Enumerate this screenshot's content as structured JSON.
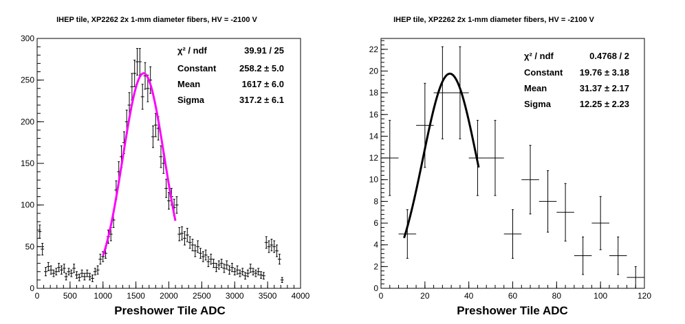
{
  "chart_data": [
    {
      "type": "scatter",
      "title": "IHEP tile, XP2262 2x 1-mm diameter fibers, HV = -2100 V",
      "xlabel": "Preshower Tile ADC",
      "ylabel": "",
      "xlim": [
        0,
        4000
      ],
      "ylim": [
        0,
        300
      ],
      "xticks": [
        0,
        500,
        1000,
        1500,
        2000,
        2500,
        3000,
        3500,
        4000
      ],
      "yticks": [
        0,
        50,
        100,
        150,
        200,
        250,
        300
      ],
      "fit_color": "#ff00ff",
      "fit_range": [
        1000,
        2100
      ],
      "stats": [
        {
          "name": "χ² / ndf",
          "value": "39.91 / 25"
        },
        {
          "name": "Constant",
          "value": "258.2 ± 5.0"
        },
        {
          "name": "Mean",
          "value": "1617 ± 6.0"
        },
        {
          "name": "Sigma",
          "value": "317.2 ± 6.1"
        }
      ],
      "fit": {
        "constant": 258.2,
        "mean": 1617,
        "sigma": 317.2
      },
      "points": [
        {
          "x": 40,
          "y": 68,
          "e": 8
        },
        {
          "x": 80,
          "y": 47,
          "e": 7
        },
        {
          "x": 130,
          "y": 20,
          "e": 5
        },
        {
          "x": 170,
          "y": 26,
          "e": 5
        },
        {
          "x": 210,
          "y": 22,
          "e": 5
        },
        {
          "x": 250,
          "y": 18,
          "e": 4
        },
        {
          "x": 290,
          "y": 20,
          "e": 4
        },
        {
          "x": 330,
          "y": 25,
          "e": 5
        },
        {
          "x": 370,
          "y": 22,
          "e": 5
        },
        {
          "x": 410,
          "y": 24,
          "e": 5
        },
        {
          "x": 440,
          "y": 14,
          "e": 4
        },
        {
          "x": 480,
          "y": 20,
          "e": 4
        },
        {
          "x": 520,
          "y": 18,
          "e": 4
        },
        {
          "x": 560,
          "y": 24,
          "e": 5
        },
        {
          "x": 600,
          "y": 16,
          "e": 4
        },
        {
          "x": 640,
          "y": 13,
          "e": 4
        },
        {
          "x": 680,
          "y": 18,
          "e": 4
        },
        {
          "x": 720,
          "y": 14,
          "e": 4
        },
        {
          "x": 760,
          "y": 18,
          "e": 4
        },
        {
          "x": 800,
          "y": 14,
          "e": 4
        },
        {
          "x": 840,
          "y": 12,
          "e": 4
        },
        {
          "x": 880,
          "y": 20,
          "e": 4
        },
        {
          "x": 920,
          "y": 22,
          "e": 5
        },
        {
          "x": 960,
          "y": 35,
          "e": 6
        },
        {
          "x": 1000,
          "y": 38,
          "e": 6
        },
        {
          "x": 1040,
          "y": 42,
          "e": 6
        },
        {
          "x": 1080,
          "y": 62,
          "e": 8
        },
        {
          "x": 1120,
          "y": 65,
          "e": 8
        },
        {
          "x": 1160,
          "y": 82,
          "e": 9
        },
        {
          "x": 1200,
          "y": 118,
          "e": 11
        },
        {
          "x": 1240,
          "y": 140,
          "e": 12
        },
        {
          "x": 1280,
          "y": 158,
          "e": 13
        },
        {
          "x": 1320,
          "y": 175,
          "e": 13
        },
        {
          "x": 1360,
          "y": 200,
          "e": 14
        },
        {
          "x": 1400,
          "y": 220,
          "e": 15
        },
        {
          "x": 1440,
          "y": 242,
          "e": 16
        },
        {
          "x": 1480,
          "y": 258,
          "e": 16
        },
        {
          "x": 1520,
          "y": 272,
          "e": 16
        },
        {
          "x": 1560,
          "y": 272,
          "e": 16
        },
        {
          "x": 1600,
          "y": 230,
          "e": 15
        },
        {
          "x": 1640,
          "y": 255,
          "e": 16
        },
        {
          "x": 1680,
          "y": 240,
          "e": 16
        },
        {
          "x": 1720,
          "y": 250,
          "e": 16
        },
        {
          "x": 1760,
          "y": 182,
          "e": 13
        },
        {
          "x": 1800,
          "y": 196,
          "e": 14
        },
        {
          "x": 1840,
          "y": 192,
          "e": 14
        },
        {
          "x": 1880,
          "y": 158,
          "e": 13
        },
        {
          "x": 1920,
          "y": 150,
          "e": 12
        },
        {
          "x": 1960,
          "y": 120,
          "e": 11
        },
        {
          "x": 2000,
          "y": 105,
          "e": 10
        },
        {
          "x": 2040,
          "y": 110,
          "e": 10
        },
        {
          "x": 2080,
          "y": 97,
          "e": 10
        },
        {
          "x": 2120,
          "y": 100,
          "e": 10
        },
        {
          "x": 2160,
          "y": 65,
          "e": 8
        },
        {
          "x": 2200,
          "y": 66,
          "e": 8
        },
        {
          "x": 2240,
          "y": 60,
          "e": 8
        },
        {
          "x": 2280,
          "y": 64,
          "e": 8
        },
        {
          "x": 2320,
          "y": 55,
          "e": 7
        },
        {
          "x": 2360,
          "y": 52,
          "e": 7
        },
        {
          "x": 2400,
          "y": 45,
          "e": 7
        },
        {
          "x": 2440,
          "y": 50,
          "e": 7
        },
        {
          "x": 2480,
          "y": 42,
          "e": 6
        },
        {
          "x": 2520,
          "y": 38,
          "e": 6
        },
        {
          "x": 2560,
          "y": 40,
          "e": 6
        },
        {
          "x": 2600,
          "y": 32,
          "e": 6
        },
        {
          "x": 2640,
          "y": 35,
          "e": 6
        },
        {
          "x": 2680,
          "y": 30,
          "e": 5
        },
        {
          "x": 2720,
          "y": 25,
          "e": 5
        },
        {
          "x": 2760,
          "y": 28,
          "e": 5
        },
        {
          "x": 2800,
          "y": 30,
          "e": 5
        },
        {
          "x": 2840,
          "y": 24,
          "e": 5
        },
        {
          "x": 2880,
          "y": 28,
          "e": 5
        },
        {
          "x": 2920,
          "y": 22,
          "e": 5
        },
        {
          "x": 2960,
          "y": 25,
          "e": 5
        },
        {
          "x": 3000,
          "y": 20,
          "e": 4
        },
        {
          "x": 3040,
          "y": 22,
          "e": 5
        },
        {
          "x": 3080,
          "y": 18,
          "e": 4
        },
        {
          "x": 3120,
          "y": 20,
          "e": 4
        },
        {
          "x": 3160,
          "y": 15,
          "e": 4
        },
        {
          "x": 3200,
          "y": 18,
          "e": 4
        },
        {
          "x": 3240,
          "y": 24,
          "e": 5
        },
        {
          "x": 3280,
          "y": 20,
          "e": 4
        },
        {
          "x": 3320,
          "y": 18,
          "e": 4
        },
        {
          "x": 3360,
          "y": 20,
          "e": 4
        },
        {
          "x": 3400,
          "y": 16,
          "e": 4
        },
        {
          "x": 3440,
          "y": 15,
          "e": 4
        },
        {
          "x": 3480,
          "y": 55,
          "e": 7
        },
        {
          "x": 3520,
          "y": 50,
          "e": 7
        },
        {
          "x": 3560,
          "y": 52,
          "e": 7
        },
        {
          "x": 3600,
          "y": 50,
          "e": 7
        },
        {
          "x": 3640,
          "y": 45,
          "e": 7
        },
        {
          "x": 3680,
          "y": 35,
          "e": 6
        },
        {
          "x": 3720,
          "y": 10,
          "e": 3
        }
      ]
    },
    {
      "type": "scatter",
      "title": "IHEP tile, XP2262 2x 1-mm diameter fibers, HV = -2100 V",
      "xlabel": "Preshower Tile ADC",
      "ylabel": "",
      "xlim": [
        0,
        120
      ],
      "ylim": [
        0,
        23
      ],
      "xticks": [
        0,
        20,
        40,
        60,
        80,
        100,
        120
      ],
      "yticks": [
        0,
        2,
        4,
        6,
        8,
        10,
        12,
        14,
        16,
        18,
        20,
        22
      ],
      "fit_color": "#000000",
      "fit_range": [
        10.5,
        44.5
      ],
      "stats": [
        {
          "name": "χ² / ndf",
          "value": "0.4768 / 2"
        },
        {
          "name": "Constant",
          "value": "19.76 ± 3.18"
        },
        {
          "name": "Mean",
          "value": "31.37 ± 2.17"
        },
        {
          "name": "Sigma",
          "value": "12.25 ± 2.23"
        }
      ],
      "fit": {
        "constant": 19.76,
        "mean": 31.37,
        "sigma": 12.25
      },
      "points": [
        {
          "x": 4,
          "y": 12,
          "e": 3.46,
          "xe": 4
        },
        {
          "x": 12,
          "y": 5,
          "e": 2.24,
          "xe": 4
        },
        {
          "x": 20,
          "y": 15,
          "e": 3.87,
          "xe": 4
        },
        {
          "x": 28,
          "y": 18,
          "e": 4.24,
          "xe": 4
        },
        {
          "x": 36,
          "y": 18,
          "e": 4.24,
          "xe": 4
        },
        {
          "x": 44,
          "y": 12,
          "e": 3.46,
          "xe": 4
        },
        {
          "x": 52,
          "y": 12,
          "e": 3.46,
          "xe": 4
        },
        {
          "x": 60,
          "y": 5,
          "e": 2.24,
          "xe": 4
        },
        {
          "x": 68,
          "y": 10,
          "e": 3.16,
          "xe": 4
        },
        {
          "x": 76,
          "y": 8,
          "e": 2.83,
          "xe": 4
        },
        {
          "x": 84,
          "y": 7,
          "e": 2.65,
          "xe": 4
        },
        {
          "x": 92,
          "y": 3,
          "e": 1.73,
          "xe": 4
        },
        {
          "x": 100,
          "y": 6,
          "e": 2.45,
          "xe": 4
        },
        {
          "x": 108,
          "y": 3,
          "e": 1.73,
          "xe": 4
        },
        {
          "x": 116,
          "y": 1,
          "e": 1.0,
          "xe": 4
        }
      ]
    }
  ]
}
